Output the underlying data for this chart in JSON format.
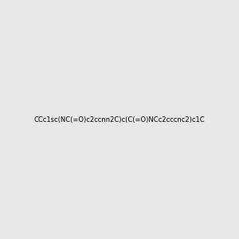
{
  "smiles": "CCc1sc(NC(=O)c2ccnn2C)c(C(=O)NCc2cccnc2)c1C",
  "title": "",
  "background_color": "#e8e8e8",
  "figsize": [
    3.0,
    3.0
  ],
  "dpi": 100
}
